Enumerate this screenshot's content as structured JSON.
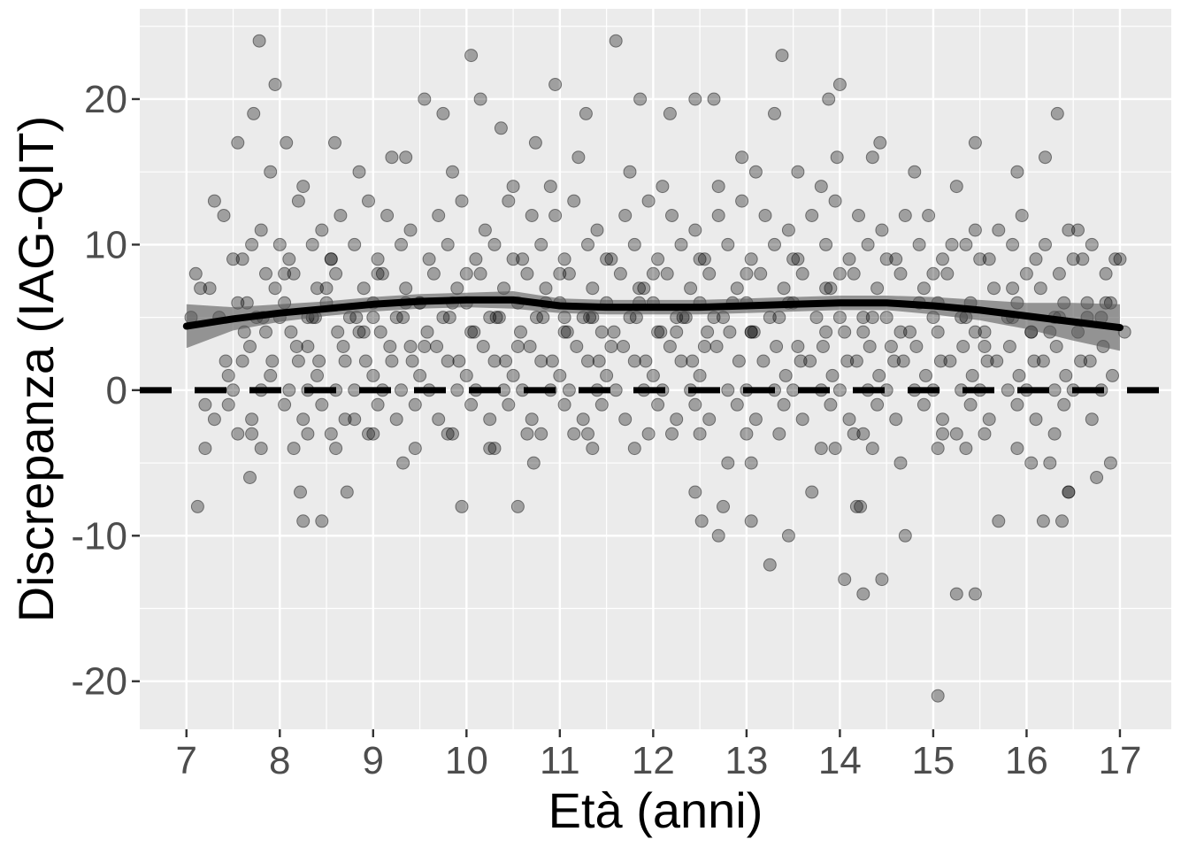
{
  "chart_data": {
    "type": "scatter",
    "title": "",
    "xlabel": "Età (anni)",
    "ylabel": "Discrepanza (IAG-QIT)",
    "xlim": [
      6.5,
      17.55
    ],
    "ylim": [
      -23.3,
      26.2
    ],
    "x_ticks": [
      7,
      8,
      9,
      10,
      11,
      12,
      13,
      14,
      15,
      16,
      17
    ],
    "x_tick_labels": [
      "7",
      "8",
      "9",
      "10",
      "11",
      "12",
      "13",
      "14",
      "15",
      "16",
      "17"
    ],
    "y_ticks": [
      -20,
      -10,
      0,
      10,
      20
    ],
    "y_tick_labels": [
      "-20",
      "-10",
      "0",
      "10",
      "20"
    ],
    "grid": true,
    "legend": "none",
    "reference_line": {
      "y": 0,
      "style": "dashed"
    },
    "colors": {
      "panel_background": "#ebebeb",
      "grid": "#ffffff",
      "points": "#000000",
      "smooth_line": "#000000",
      "confidence_band": "#595959"
    },
    "smooth": {
      "x": [
        7.0,
        7.5,
        8.0,
        8.5,
        9.0,
        9.5,
        10.0,
        10.5,
        11.0,
        11.5,
        12.0,
        12.5,
        13.0,
        13.5,
        14.0,
        14.5,
        15.0,
        15.5,
        16.0,
        16.5,
        17.0
      ],
      "y": [
        4.4,
        4.9,
        5.3,
        5.6,
        5.9,
        6.1,
        6.2,
        6.2,
        5.8,
        5.7,
        5.7,
        5.7,
        5.8,
        5.9,
        6.0,
        6.0,
        5.8,
        5.5,
        5.1,
        4.7,
        4.3
      ],
      "lower": [
        2.9,
        4.1,
        4.7,
        5.1,
        5.4,
        5.6,
        5.7,
        5.6,
        5.3,
        5.2,
        5.2,
        5.2,
        5.3,
        5.4,
        5.5,
        5.5,
        5.2,
        4.8,
        4.2,
        3.4,
        2.7
      ],
      "upper": [
        5.9,
        5.7,
        5.9,
        6.1,
        6.4,
        6.6,
        6.7,
        6.8,
        6.3,
        6.2,
        6.2,
        6.2,
        6.3,
        6.4,
        6.5,
        6.5,
        6.4,
        6.2,
        6.0,
        6.0,
        5.9
      ]
    },
    "points_x": [
      7.78,
      7.95,
      9.55,
      10.05,
      10.15,
      10.95,
      11.6,
      12.45,
      12.65,
      13.38,
      13.88,
      14.0,
      7.55,
      7.72,
      8.07,
      8.59,
      9.75,
      10.37,
      10.74,
      11.28,
      11.86,
      12.18,
      12.95,
      13.3,
      13.97,
      14.43,
      15.45,
      16.33,
      16.95,
      7.3,
      7.9,
      8.25,
      8.85,
      9.2,
      9.35,
      9.85,
      10.5,
      10.9,
      11.2,
      11.75,
      12.1,
      12.7,
      13.1,
      13.55,
      13.8,
      14.35,
      14.8,
      15.25,
      15.9,
      16.2,
      16.55,
      7.1,
      7.4,
      7.6,
      7.8,
      8.0,
      8.2,
      8.45,
      8.65,
      8.95,
      9.15,
      9.4,
      9.7,
      9.95,
      10.2,
      10.45,
      10.7,
      10.95,
      11.15,
      11.4,
      11.7,
      11.95,
      12.2,
      12.45,
      12.7,
      12.95,
      13.2,
      13.45,
      13.7,
      13.95,
      14.2,
      14.45,
      14.7,
      14.95,
      15.2,
      15.45,
      15.7,
      15.95,
      16.2,
      16.45,
      16.7,
      17.0,
      7.25,
      7.5,
      7.7,
      7.85,
      8.1,
      8.35,
      8.55,
      8.8,
      9.05,
      9.3,
      9.6,
      9.8,
      10.1,
      10.3,
      10.6,
      10.8,
      11.05,
      11.3,
      11.55,
      11.8,
      12.05,
      12.3,
      12.55,
      12.8,
      13.05,
      13.3,
      13.55,
      13.85,
      14.1,
      14.3,
      14.6,
      14.85,
      15.1,
      15.35,
      15.6,
      15.85,
      16.1,
      16.35,
      16.6,
      16.85,
      7.15,
      7.45,
      7.65,
      7.95,
      8.15,
      8.4,
      8.6,
      8.9,
      9.1,
      9.35,
      9.65,
      9.9,
      10.15,
      10.4,
      10.65,
      10.85,
      11.1,
      11.35,
      11.65,
      11.9,
      12.15,
      12.4,
      12.6,
      12.9,
      13.15,
      13.4,
      13.6,
      13.9,
      14.15,
      14.4,
      14.65,
      14.9,
      15.15,
      15.4,
      15.65,
      15.9,
      16.15,
      16.4,
      16.65,
      16.9,
      7.05,
      7.55,
      7.75,
      8.05,
      8.3,
      8.5,
      8.75,
      9.0,
      9.25,
      9.5,
      9.75,
      10.0,
      10.25,
      10.55,
      10.75,
      11.0,
      11.25,
      11.5,
      11.75,
      12.0,
      12.25,
      12.5,
      12.75,
      13.0,
      13.25,
      13.5,
      13.75,
      14.0,
      14.25,
      14.5,
      14.75,
      15.0,
      15.3,
      15.55,
      15.8,
      16.05,
      16.3,
      16.55,
      16.8,
      17.05,
      7.35,
      7.62,
      7.82,
      8.12,
      8.38,
      8.62,
      8.82,
      9.08,
      9.32,
      9.58,
      9.82,
      10.08,
      10.32,
      10.58,
      10.82,
      11.08,
      11.32,
      11.58,
      11.82,
      12.08,
      12.32,
      12.58,
      12.82,
      13.08,
      13.32,
      13.58,
      13.82,
      14.08,
      14.32,
      14.58,
      14.82,
      15.08,
      15.32,
      15.58,
      15.82,
      16.08,
      16.32,
      16.58,
      16.82,
      7.42,
      7.68,
      7.92,
      8.18,
      8.42,
      8.68,
      8.92,
      9.18,
      9.42,
      9.68,
      9.92,
      10.18,
      10.42,
      10.68,
      10.92,
      11.18,
      11.42,
      11.68,
      11.92,
      12.18,
      12.42,
      12.68,
      12.92,
      13.18,
      13.42,
      13.68,
      13.92,
      14.18,
      14.42,
      14.68,
      14.92,
      15.18,
      15.42,
      15.68,
      15.92,
      16.18,
      16.42,
      16.68,
      16.92,
      7.6,
      7.9,
      8.2,
      8.4,
      8.7,
      9.0,
      9.2,
      9.5,
      9.8,
      10.0,
      10.3,
      10.5,
      10.8,
      11.0,
      11.3,
      11.5,
      11.8,
      12.0,
      12.3,
      12.5,
      12.8,
      13.0,
      13.3,
      13.5,
      13.8,
      14.0,
      14.3,
      14.5,
      14.8,
      15.0,
      15.3,
      15.5,
      15.8,
      16.0,
      16.3,
      16.5,
      16.8,
      7.5,
      7.8,
      8.1,
      8.3,
      8.6,
      8.8,
      9.1,
      9.3,
      9.6,
      9.9,
      10.1,
      10.4,
      10.6,
      10.9,
      11.1,
      11.4,
      11.6,
      11.9,
      12.1,
      12.4,
      12.6,
      12.9,
      13.1,
      13.4,
      13.6,
      13.9,
      14.1,
      14.4,
      14.6,
      14.9,
      15.1,
      15.4,
      15.6,
      15.9,
      16.1,
      16.4,
      16.7,
      7.2,
      7.3,
      7.45,
      7.7,
      8.05,
      8.25,
      8.45,
      8.7,
      9.05,
      9.25,
      9.45,
      9.7,
      10.05,
      10.25,
      10.45,
      10.7,
      11.05,
      11.25,
      11.45,
      11.7,
      12.05,
      12.25,
      12.45,
      12.7,
      13.05,
      13.25,
      13.45,
      13.7,
      14.05,
      14.25,
      14.45,
      14.7,
      15.05,
      15.25,
      15.45,
      15.7,
      16.05,
      16.25,
      16.45,
      16.75,
      7.12,
      7.68,
      8.22,
      8.45,
      8.72,
      9.32,
      10.72,
      12.45,
      12.52,
      12.75,
      14.18,
      14.22,
      16.18,
      16.38,
      16.45,
      8.25,
      8.8,
      9.95,
      10.55,
      11.15,
      11.35,
      11.95,
      12.5,
      13.05,
      13.35,
      13.95,
      14.15,
      14.35,
      15.05,
      15.25,
      15.35,
      15.55,
      7.2,
      7.55,
      7.8,
      8.3,
      8.6,
      9.0,
      9.8,
      10.3,
      10.8,
      11.3,
      11.8,
      12.2,
      12.8,
      13.0,
      13.8,
      14.25,
      14.65,
      15.1,
      15.9,
      16.3,
      16.9,
      7.7,
      8.15,
      8.55,
      8.95,
      9.45,
      9.85,
      10.25,
      10.65,
      11.05,
      11.45,
      11.85,
      12.25,
      12.65,
      13.05,
      13.45,
      13.85,
      14.25,
      14.65,
      15.05,
      15.45,
      15.85,
      16.25,
      16.65,
      7.85,
      8.35,
      8.85,
      9.35,
      9.85,
      10.35,
      10.85,
      11.35,
      11.85,
      12.35,
      12.85,
      13.35,
      13.85,
      14.35,
      14.85,
      15.35,
      15.85,
      16.35,
      16.85,
      8.0,
      8.5,
      9.0,
      9.5,
      10.0,
      10.5,
      11.0,
      11.5,
      12.0,
      12.5,
      13.0,
      13.5,
      14.0,
      14.5,
      15.0,
      15.5,
      16.0,
      16.5,
      8.05,
      8.55,
      9.05,
      9.55,
      10.05,
      10.55,
      11.05,
      11.55,
      12.05,
      12.55,
      13.05,
      13.55,
      14.05,
      14.55,
      15.05,
      15.55,
      16.05,
      8.3,
      8.9,
      9.4,
      9.9,
      10.4,
      10.9,
      11.4,
      11.9,
      12.4,
      12.9,
      13.4,
      13.9,
      14.4,
      14.9,
      15.4,
      15.9,
      16.4
    ],
    "points_y": [
      24,
      21,
      20,
      23,
      20,
      21,
      24,
      20,
      20,
      23,
      20,
      21,
      17,
      19,
      17,
      17,
      19,
      18,
      17,
      19,
      20,
      19,
      16,
      19,
      16,
      17,
      17,
      19,
      9,
      13,
      15,
      14,
      15,
      16,
      16,
      15,
      14,
      14,
      16,
      15,
      14,
      14,
      15,
      15,
      14,
      16,
      15,
      14,
      15,
      16,
      11,
      8,
      12,
      9,
      11,
      10,
      13,
      11,
      12,
      13,
      12,
      11,
      12,
      13,
      11,
      13,
      12,
      12,
      13,
      11,
      12,
      13,
      12,
      11,
      12,
      13,
      12,
      11,
      12,
      13,
      12,
      11,
      12,
      12,
      10,
      11,
      11,
      12,
      10,
      11,
      10,
      9,
      7,
      9,
      10,
      8,
      9,
      10,
      9,
      10,
      9,
      10,
      9,
      10,
      9,
      10,
      9,
      10,
      9,
      10,
      9,
      10,
      9,
      10,
      9,
      10,
      9,
      10,
      9,
      10,
      9,
      10,
      9,
      10,
      9,
      10,
      9,
      10,
      9,
      8,
      9,
      8,
      7,
      1,
      6,
      7,
      8,
      7,
      8,
      7,
      8,
      7,
      8,
      7,
      8,
      7,
      8,
      7,
      8,
      7,
      8,
      7,
      8,
      7,
      8,
      7,
      8,
      7,
      8,
      7,
      8,
      7,
      8,
      7,
      8,
      6,
      7,
      6,
      7,
      6,
      5,
      6,
      5,
      6,
      5,
      6,
      5,
      6,
      5,
      6,
      5,
      6,
      5,
      6,
      5,
      6,
      5,
      6,
      5,
      6,
      5,
      6,
      5,
      6,
      5,
      6,
      5,
      6,
      5,
      5,
      4,
      5,
      4,
      5,
      5,
      4,
      5,
      4,
      5,
      4,
      5,
      4,
      5,
      4,
      5,
      4,
      5,
      4,
      5,
      4,
      5,
      4,
      5,
      4,
      5,
      4,
      5,
      4,
      5,
      4,
      5,
      4,
      5,
      4,
      4,
      4,
      3,
      2,
      3,
      2,
      3,
      2,
      3,
      2,
      3,
      2,
      3,
      2,
      3,
      2,
      3,
      2,
      3,
      2,
      3,
      2,
      3,
      2,
      3,
      2,
      3,
      2,
      3,
      2,
      3,
      2,
      3,
      2,
      3,
      2,
      3,
      2,
      3,
      2,
      2,
      1,
      2,
      1,
      2,
      1,
      2,
      1,
      2,
      1,
      2,
      1,
      2,
      1,
      2,
      1,
      2,
      1,
      2,
      1,
      2,
      1,
      2,
      1,
      2,
      1,
      2,
      1,
      2,
      1,
      2,
      1,
      2,
      1,
      2,
      1,
      0,
      0,
      0,
      0,
      0,
      0,
      0,
      0,
      0,
      0,
      0,
      0,
      0,
      0,
      0,
      0,
      0,
      0,
      0,
      0,
      0,
      0,
      0,
      0,
      0,
      0,
      0,
      0,
      0,
      0,
      0,
      0,
      0,
      0,
      0,
      0,
      0,
      -2,
      -1,
      -2,
      -1,
      -2,
      -1,
      -2,
      -1,
      -2,
      -1,
      -2,
      -1,
      -2,
      -1,
      -2,
      -1,
      -2,
      -1,
      -2,
      -1,
      -2,
      -1,
      -2,
      -1,
      -2,
      -1,
      -2,
      -1,
      -2,
      -1,
      -2,
      -1,
      -2,
      -1,
      -2,
      -1,
      -2,
      -1,
      -2,
      -1,
      -10,
      -9,
      -12,
      -10,
      -7,
      -13,
      -14,
      -13,
      -10,
      -21,
      -14,
      -14,
      -9,
      -5,
      -5,
      -7,
      -6,
      -8,
      -6,
      -7,
      -9,
      -7,
      -5,
      -5,
      -7,
      -9,
      -8,
      -8,
      -8,
      -9,
      -9,
      -7,
      -9,
      -2,
      -8,
      -8,
      -3,
      -4,
      -3,
      -3,
      -5,
      -3,
      -4,
      -3,
      -4,
      -4,
      -3,
      -4,
      -3,
      -4,
      -3,
      -4,
      -3,
      -4,
      -3,
      -3,
      -4,
      -3,
      -3,
      -4,
      -3,
      -5,
      -3,
      -4,
      -3,
      -5,
      -3,
      -4,
      -3,
      -5,
      -3,
      -4,
      -3,
      -3,
      -4,
      -3,
      -4,
      -3,
      5,
      4,
      6,
      4,
      5,
      4,
      6,
      4,
      5,
      4,
      6,
      4,
      5,
      4,
      6,
      4,
      5,
      4,
      6,
      6,
      5,
      6,
      5,
      7,
      5,
      6,
      5,
      7,
      5,
      6,
      5,
      7,
      5,
      6,
      5,
      7,
      5,
      6,
      8,
      9,
      8,
      9,
      8,
      9,
      8,
      9,
      8,
      9,
      8,
      9,
      8,
      9,
      8,
      9,
      8,
      3,
      4,
      3,
      4,
      3,
      4,
      3,
      4,
      3,
      4,
      3,
      4,
      3,
      4,
      3,
      4,
      3
    ]
  }
}
